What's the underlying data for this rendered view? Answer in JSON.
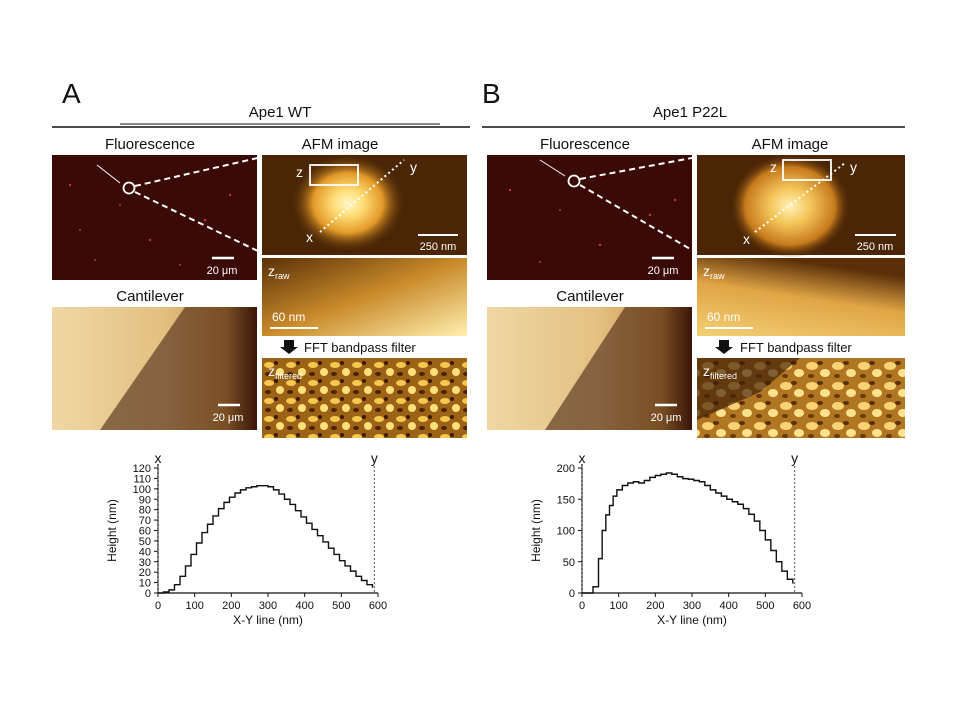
{
  "panels": [
    {
      "letter": "A",
      "title": "Ape1 WT",
      "fluorescence_label": "Fluorescence",
      "fluorescence_scale": "20 μm",
      "afm_label": "AFM image",
      "afm_scale": "250 nm",
      "afm_z": "z",
      "afm_x": "x",
      "afm_y": "y",
      "cantilever_label": "Cantilever",
      "cantilever_scale": "20 μm",
      "zraw_base": "z",
      "zraw_sub": "raw",
      "zraw_scale": "60 nm",
      "fft_label": "FFT bandpass filter",
      "zfilt_base": "z",
      "zfilt_sub": "filtered",
      "colors": {
        "fluor": "#3a0a06",
        "afm_bg": "#4a2506",
        "afm_blob": "#ffe9a0",
        "cantilever": "#e8c98a"
      }
    },
    {
      "letter": "B",
      "title": "Ape1 P22L",
      "fluorescence_label": "Fluorescence",
      "fluorescence_scale": "20 μm",
      "afm_label": "AFM image",
      "afm_scale": "250 nm",
      "afm_z": "z",
      "afm_x": "x",
      "afm_y": "y",
      "cantilever_label": "Cantilever",
      "cantilever_scale": "20 μm",
      "zraw_base": "z",
      "zraw_sub": "raw",
      "zraw_scale": "60 nm",
      "fft_label": "FFT bandpass filter",
      "zfilt_base": "z",
      "zfilt_sub": "filtered",
      "colors": {
        "fluor": "#3a0a06",
        "afm_bg": "#4a2506",
        "afm_blob": "#ffe9a0",
        "cantilever": "#e8c98a"
      }
    }
  ],
  "chart_data": [
    {
      "type": "line",
      "xlabel": "X-Y line (nm)",
      "ylabel": "Height (nm)",
      "xlim": [
        0,
        600
      ],
      "ylim": [
        0,
        120
      ],
      "xticks": [
        0,
        100,
        200,
        300,
        400,
        500,
        600
      ],
      "yticks": [
        0,
        10,
        20,
        30,
        40,
        50,
        60,
        70,
        80,
        90,
        100,
        110,
        120
      ],
      "marker_x_label": "x",
      "marker_y_label": "y",
      "marker_x_pos": 0,
      "marker_y_pos": 590,
      "x": [
        0,
        15,
        30,
        45,
        60,
        75,
        90,
        105,
        120,
        135,
        150,
        165,
        180,
        195,
        210,
        225,
        240,
        255,
        270,
        285,
        300,
        315,
        330,
        345,
        360,
        375,
        390,
        405,
        420,
        435,
        450,
        465,
        480,
        495,
        510,
        525,
        540,
        555,
        570,
        585
      ],
      "y": [
        0,
        1,
        3,
        8,
        16,
        26,
        37,
        48,
        58,
        66,
        74,
        81,
        87,
        92,
        96,
        99,
        101,
        102,
        103,
        103,
        102,
        99,
        95,
        90,
        85,
        79,
        73,
        67,
        61,
        55,
        49,
        43,
        37,
        31,
        26,
        21,
        16,
        12,
        8,
        5
      ]
    },
    {
      "type": "line",
      "xlabel": "X-Y line (nm)",
      "ylabel": "Height (nm)",
      "xlim": [
        0,
        600
      ],
      "ylim": [
        0,
        200
      ],
      "xticks": [
        0,
        100,
        200,
        300,
        400,
        500,
        600
      ],
      "yticks": [
        0,
        50,
        100,
        150,
        200
      ],
      "marker_x_label": "x",
      "marker_y_label": "y",
      "marker_x_pos": 0,
      "marker_y_pos": 580,
      "x": [
        0,
        15,
        30,
        45,
        55,
        65,
        75,
        85,
        95,
        110,
        125,
        140,
        155,
        170,
        185,
        200,
        215,
        230,
        245,
        260,
        275,
        290,
        305,
        320,
        335,
        350,
        365,
        380,
        395,
        410,
        425,
        440,
        455,
        470,
        485,
        500,
        515,
        530,
        545,
        560,
        575
      ],
      "y": [
        0,
        0,
        10,
        55,
        100,
        125,
        140,
        155,
        165,
        172,
        176,
        178,
        176,
        180,
        185,
        188,
        190,
        192,
        190,
        186,
        183,
        182,
        180,
        178,
        172,
        165,
        160,
        155,
        150,
        146,
        142,
        135,
        126,
        115,
        100,
        85,
        68,
        50,
        35,
        22,
        15
      ]
    }
  ]
}
